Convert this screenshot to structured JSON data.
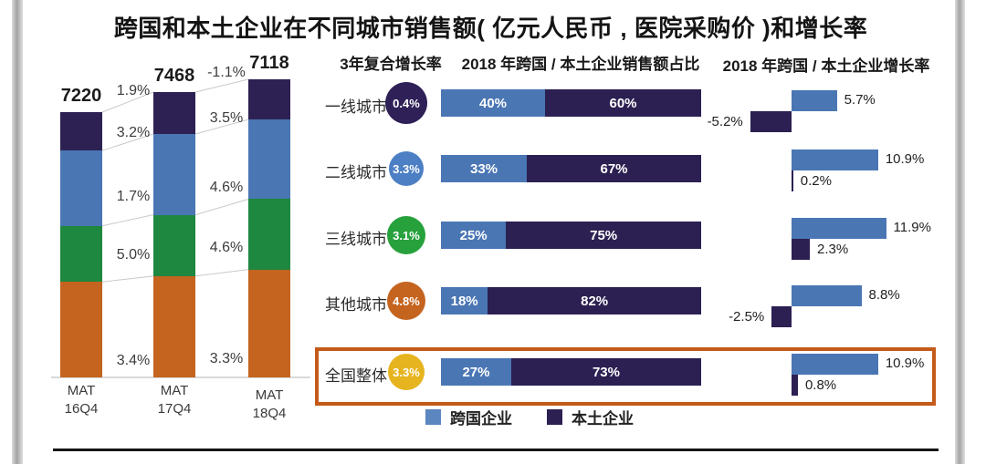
{
  "title": "跨国和本土企业在不同城市销售额( 亿元人民币 , 医院采购价 )和增长率",
  "headers": {
    "cagr": "3年复合增长率",
    "share": "2018 年跨国 / 本土企业销售额占比",
    "growth": "2018 年跨国 / 本土企业增长率"
  },
  "legend": {
    "items": [
      {
        "label": "跨国企业",
        "color": "#5b86c0"
      },
      {
        "label": "本土企业",
        "color": "#2c2052"
      }
    ]
  },
  "colors": {
    "mnc_blue": "#4a76b4",
    "local_navy": "#2c2052",
    "green": "#1e8740",
    "orange": "#c4641f",
    "gold": "#e6b41f",
    "highlight_border": "#c45a1a"
  },
  "chart_data": [
    {
      "id": "sales-by-city-stacked",
      "type": "bar",
      "stacked": true,
      "title": "销售额(亿元人民币)",
      "categories": [
        "MAT\n16Q4",
        "MAT\n17Q4",
        "MAT\n18Q4"
      ],
      "totals": [
        7220,
        7468,
        7118
      ],
      "series": [
        {
          "name": "一线城市",
          "color": "#2d2153",
          "frac": [
            0.145,
            0.147,
            0.135
          ]
        },
        {
          "name": "二线城市",
          "color": "#4a76b4",
          "frac": [
            0.284,
            0.283,
            0.267
          ]
        },
        {
          "name": "三线城市",
          "color": "#1e8740",
          "frac": [
            0.211,
            0.215,
            0.236
          ]
        },
        {
          "name": "其他城市",
          "color": "#c4641f",
          "frac": [
            0.36,
            0.355,
            0.362
          ]
        }
      ],
      "growth_labels_16_17": [
        "1.9%",
        "3.2%",
        "1.7%",
        "5.0%",
        "3.4%"
      ],
      "growth_labels_17_18": [
        "-1.1%",
        "3.5%",
        "4.6%",
        "4.6%",
        "3.3%"
      ]
    },
    {
      "id": "share-2018",
      "type": "bar",
      "title": "2018 年跨国 / 本土企业销售额占比",
      "rows": [
        {
          "label": "一线城市",
          "cagr": "0.4%",
          "circle_color": "#2f2057",
          "mnc": 40,
          "local": 60,
          "mnc_label": "40%",
          "local_label": "60%"
        },
        {
          "label": "二线城市",
          "cagr": "3.3%",
          "circle_color": "#4d7fc4",
          "mnc": 33,
          "local": 67,
          "mnc_label": "33%",
          "local_label": "67%"
        },
        {
          "label": "三线城市",
          "cagr": "3.1%",
          "circle_color": "#27a13c",
          "mnc": 25,
          "local": 75,
          "mnc_label": "25%",
          "local_label": "75%"
        },
        {
          "label": "其他城市",
          "cagr": "4.8%",
          "circle_color": "#c4641f",
          "mnc": 18,
          "local": 82,
          "mnc_label": "18%",
          "local_label": "82%"
        },
        {
          "label": "全国整体",
          "cagr": "3.3%",
          "circle_color": "#e6b41f",
          "mnc": 27,
          "local": 73,
          "mnc_label": "27%",
          "local_label": "73%",
          "highlighted": true
        }
      ]
    },
    {
      "id": "growth-2018",
      "type": "bar",
      "title": "2018 年跨国 / 本土企业增长率",
      "rows": [
        {
          "label": "一线城市",
          "mnc": 5.7,
          "local": -5.2,
          "mnc_label": "5.7%",
          "local_label": "-5.2%"
        },
        {
          "label": "二线城市",
          "mnc": 10.9,
          "local": 0.2,
          "mnc_label": "10.9%",
          "local_label": "0.2%"
        },
        {
          "label": "三线城市",
          "mnc": 11.9,
          "local": 2.3,
          "mnc_label": "11.9%",
          "local_label": "2.3%"
        },
        {
          "label": "其他城市",
          "mnc": 8.8,
          "local": -2.5,
          "mnc_label": "8.8%",
          "local_label": "-2.5%"
        },
        {
          "label": "全国整体",
          "mnc": 10.9,
          "local": 0.8,
          "mnc_label": "10.9%",
          "local_label": "0.8%",
          "highlighted": true
        }
      ]
    }
  ]
}
